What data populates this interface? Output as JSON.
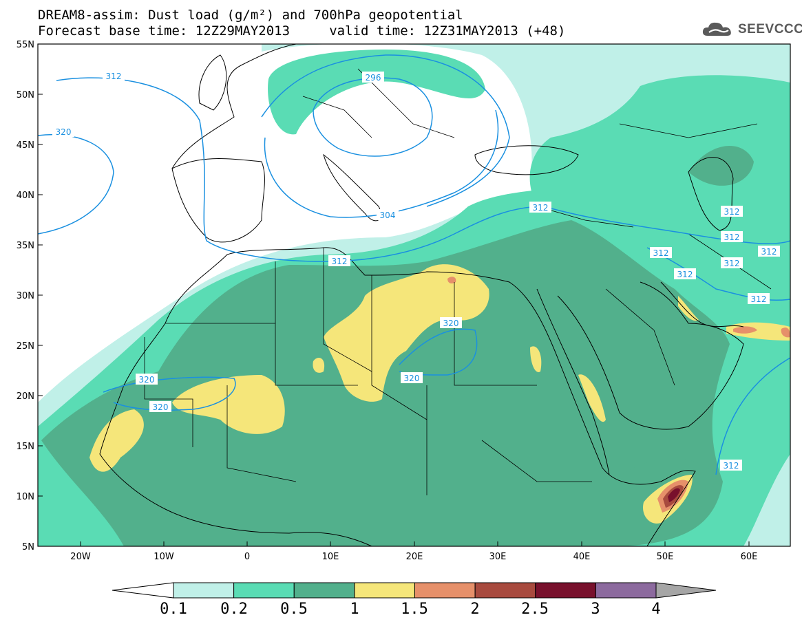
{
  "title": {
    "line1": "DREAM8-assim: Dust load (g/m²) and 700hPa geopotential",
    "line2": "Forecast base time: 12Z29MAY2013     valid time: 12Z31MAY2013 (+48)"
  },
  "logo": {
    "text": "SEEVCCC",
    "icon": "cloud-icon"
  },
  "axes": {
    "lat_labels": [
      "55N",
      "50N",
      "45N",
      "40N",
      "35N",
      "30N",
      "25N",
      "20N",
      "15N",
      "10N",
      "5N"
    ],
    "lon_labels": [
      "20W",
      "10W",
      "0",
      "10E",
      "20E",
      "30E",
      "40E",
      "50E",
      "60E"
    ]
  },
  "contours": {
    "labels": [
      "312",
      "320",
      "296",
      "304",
      "312",
      "320",
      "320",
      "320",
      "320",
      "312",
      "312",
      "312",
      "312",
      "312",
      "312",
      "312",
      "312",
      "312"
    ],
    "color": "#1a90e0"
  },
  "colorbar": {
    "tick_labels": [
      "0.1",
      "0.2",
      "0.5",
      "1",
      "1.5",
      "2",
      "2.5",
      "3",
      "4"
    ],
    "colors": [
      "#c0f0e8",
      "#5adcb4",
      "#52b08c",
      "#f5e67a",
      "#e6906a",
      "#a84a3e",
      "#78102c",
      "#8c6a9e",
      "#a6a6a6"
    ]
  },
  "colors": {
    "lvl1": "#c0f0e8",
    "lvl2": "#5adcb4",
    "lvl3": "#52b08c",
    "lvl4": "#f5e67a",
    "lvl5": "#e6906a",
    "lvl6": "#a84a3e",
    "lvl7": "#78102c",
    "contour": "#1a90e0"
  }
}
